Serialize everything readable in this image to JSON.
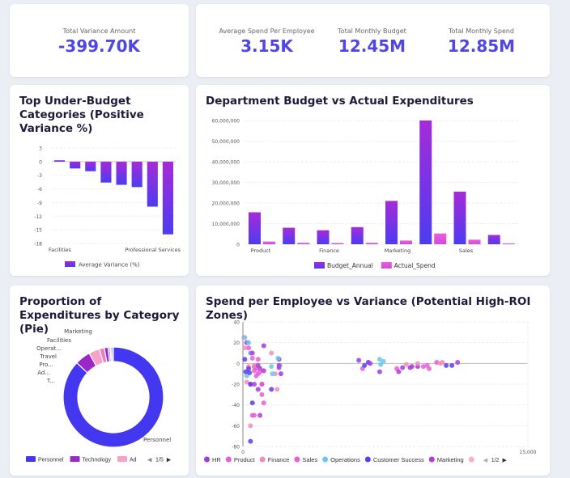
{
  "kpis": {
    "total_variance": {
      "label": "Total Variance Amount",
      "value": "-399.70K"
    },
    "avg_spend": {
      "label": "Average Spend Per Employee",
      "value": "3.15K"
    },
    "monthly_budget": {
      "label": "Total Monthly Budget",
      "value": "12.45M"
    },
    "monthly_spend": {
      "label": "Total Monthly Spend",
      "value": "12.85M"
    }
  },
  "colors": {
    "accent": "#4f46e5",
    "purple": "#a52bd8",
    "blue": "#4c3cf0",
    "pink": "#f05bd6"
  },
  "chart_data": [
    {
      "type": "bar",
      "title": "Top Under-Budget Categories (Positive Variance %)",
      "categories": [
        "Facilities",
        "",
        "",
        "",
        "",
        "",
        "",
        "Professional Services"
      ],
      "series": [
        {
          "name": "Average Variance (%)",
          "values": [
            0.3,
            -1.5,
            -2.1,
            -4.6,
            -5.1,
            -5.6,
            -9.9,
            -16
          ]
        }
      ],
      "yticks": [
        "3",
        "0",
        "-3",
        "-6",
        "-9",
        "-12",
        "-15",
        "-18"
      ],
      "ylim": [
        -18,
        3
      ],
      "legend": "bottom",
      "grid": true
    },
    {
      "type": "bar",
      "title": "Department Budget vs Actual Expenditures",
      "categories": [
        "Product",
        "",
        "Finance",
        "",
        "Marketing",
        "",
        "Sales",
        ""
      ],
      "series": [
        {
          "name": "Budget_Annual",
          "values": [
            15500000,
            8000000,
            6800000,
            8300000,
            21000000,
            60000000,
            25500000,
            4500000
          ]
        },
        {
          "name": "Actual_Spend",
          "values": [
            1300000,
            700000,
            600000,
            700000,
            1800000,
            5200000,
            2200000,
            400000
          ]
        }
      ],
      "yticks": [
        "60,000,000",
        "50,000,000",
        "40,000,000",
        "30,000,000",
        "20,000,000",
        "10,000,000",
        "0"
      ],
      "ylim": [
        0,
        60000000
      ],
      "legend": "bottom",
      "grid": true
    },
    {
      "type": "pie",
      "title": "Proportion of Expenditures by Category (Pie)",
      "slices": [
        {
          "name": "Personnel",
          "label": "Personnel",
          "value": 87,
          "color": "#4338f0"
        },
        {
          "name": "Technology",
          "label": "T...",
          "value": 5,
          "color": "#9c27c9"
        },
        {
          "name": "Ad",
          "label": "Ad...",
          "value": 3.5,
          "color": "#f7a0c8"
        },
        {
          "name": "Pro",
          "label": "Pro...",
          "value": 1.6,
          "color": "#f07ac0"
        },
        {
          "name": "Travel",
          "label": "Travel",
          "value": 1.2,
          "color": "#8a2be2"
        },
        {
          "name": "Operat",
          "label": "Operat...",
          "value": 0.7,
          "color": "#f58ab0"
        },
        {
          "name": "Facilities",
          "label": "Facilities",
          "value": 0.5,
          "color": "#6cc5ea"
        },
        {
          "name": "Marketing",
          "label": "Marketing",
          "value": 0.5,
          "color": "#6a5af9"
        }
      ],
      "legend": {
        "items": [
          {
            "name": "Personnel",
            "color": "#4338f0"
          },
          {
            "name": "Technology",
            "color": "#9c27c9"
          },
          {
            "name": "Ad",
            "color": "#f7a0c8"
          }
        ],
        "page": "1/5"
      }
    },
    {
      "type": "scatter",
      "title": "Spend per Employee vs Variance (Potential High-ROI Zones)",
      "xlim": [
        0,
        15000
      ],
      "xticks": [
        "0",
        "15,000"
      ],
      "ylim": [
        -80,
        40
      ],
      "yticks": [
        "40",
        "20",
        "0",
        "-20",
        "-40",
        "-60",
        "-80"
      ],
      "grid": true,
      "legend": {
        "items": [
          {
            "name": "HR",
            "color": "#9b3de0"
          },
          {
            "name": "Product",
            "color": "#e85ae0"
          },
          {
            "name": "Finance",
            "color": "#f28db8"
          },
          {
            "name": "Sales",
            "color": "#e860d0"
          },
          {
            "name": "Operations",
            "color": "#6cc5ea"
          },
          {
            "name": "Customer Success",
            "color": "#5b3cf0"
          },
          {
            "name": "Marketing",
            "color": "#b43ad8"
          },
          {
            "name": "",
            "color": "#f7b0cc"
          }
        ],
        "page": "1/2"
      },
      "series": [
        {
          "name": "HR",
          "points": [
            [
              200,
              20
            ],
            [
              400,
              10
            ],
            [
              600,
              -3
            ],
            [
              900,
              -5
            ],
            [
              1100,
              17
            ],
            [
              1900,
              4
            ],
            [
              1900,
              -4
            ],
            [
              2000,
              -10
            ],
            [
              1000,
              -20
            ],
            [
              800,
              -25
            ],
            [
              6100,
              3
            ],
            [
              7200,
              -8
            ],
            [
              8400,
              -4
            ],
            [
              8800,
              -4
            ],
            [
              9200,
              -3
            ]
          ]
        },
        {
          "name": "Product",
          "points": [
            [
              300,
              15
            ],
            [
              500,
              5
            ],
            [
              700,
              -5
            ],
            [
              800,
              -10
            ],
            [
              1000,
              -20
            ],
            [
              1100,
              -38
            ],
            [
              500,
              -50
            ],
            [
              700,
              -12
            ],
            [
              6300,
              -5
            ],
            [
              8100,
              -5
            ],
            [
              9500,
              -3
            ],
            [
              10200,
              1
            ]
          ]
        },
        {
          "name": "Finance",
          "points": [
            [
              50,
              25
            ],
            [
              100,
              15
            ],
            [
              300,
              -3
            ],
            [
              200,
              -18
            ],
            [
              600,
              -2
            ],
            [
              1500,
              10
            ],
            [
              1800,
              -25
            ],
            [
              1700,
              -10
            ],
            [
              400,
              -60
            ],
            [
              8600,
              -1
            ],
            [
              9200,
              0
            ],
            [
              10400,
              0
            ],
            [
              10500,
              1
            ]
          ]
        },
        {
          "name": "Sales",
          "points": [
            [
              600,
              -7
            ],
            [
              800,
              4
            ],
            [
              900,
              -8
            ],
            [
              1000,
              -30
            ],
            [
              600,
              -50
            ],
            [
              400,
              -20
            ],
            [
              9700,
              -2
            ],
            [
              9800,
              -5
            ]
          ]
        },
        {
          "name": "Operations",
          "points": [
            [
              100,
              25
            ],
            [
              300,
              20
            ],
            [
              400,
              10
            ],
            [
              200,
              -12
            ],
            [
              1500,
              -3
            ],
            [
              1550,
              -10
            ],
            [
              1850,
              5
            ],
            [
              1950,
              -2
            ],
            [
              7200,
              4
            ],
            [
              7250,
              -1
            ],
            [
              7400,
              2
            ]
          ]
        },
        {
          "name": "Customer Success",
          "points": [
            [
              100,
              4
            ],
            [
              300,
              -5
            ],
            [
              350,
              -9
            ],
            [
              150,
              -8
            ],
            [
              400,
              -20
            ],
            [
              500,
              -38
            ],
            [
              400,
              -75
            ],
            [
              1500,
              -25
            ],
            [
              6400,
              -2
            ],
            [
              6600,
              1
            ],
            [
              10700,
              -2
            ],
            [
              11000,
              -2
            ]
          ]
        },
        {
          "name": "Marketing",
          "points": [
            [
              500,
              10
            ],
            [
              800,
              -2
            ],
            [
              600,
              -20
            ],
            [
              900,
              -50
            ],
            [
              1100,
              -7
            ],
            [
              1900,
              -2
            ],
            [
              6700,
              0
            ],
            [
              8200,
              -8
            ],
            [
              8900,
              -3
            ],
            [
              11300,
              1
            ]
          ]
        }
      ]
    }
  ]
}
